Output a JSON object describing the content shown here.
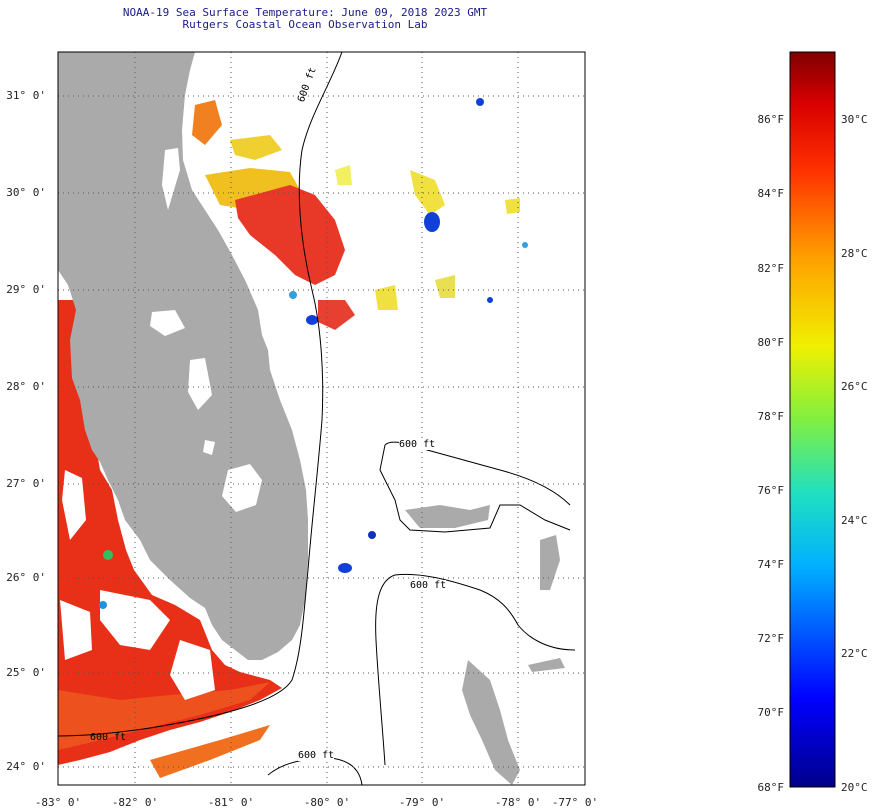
{
  "header": {
    "title_line1": "NOAA-19 Sea Surface Temperature:  June 09, 2018 2023 GMT",
    "title_line2": "Rutgers Coastal Ocean Observation Lab"
  },
  "map": {
    "lat_labels": [
      "31° 0'",
      "30° 0'",
      "29° 0'",
      "28° 0'",
      "27° 0'",
      "26° 0'",
      "25° 0'",
      "24° 0'"
    ],
    "lon_labels": [
      "-83° 0'",
      "-82° 0'",
      "-81° 0'",
      "-80° 0'",
      "-79° 0'",
      "-78° 0'",
      "-77° 0'"
    ],
    "contour_labels": [
      "600 ft",
      "600 ft",
      "600 ft",
      "600 ft",
      "600 ft"
    ],
    "colors": {
      "land": "#aaaaaa",
      "no_data": "#ffffff",
      "warm": "#e82810",
      "orange": "#f08018",
      "yellow": "#f0e020",
      "blue": "#1040d0"
    }
  },
  "colorbar": {
    "fahrenheit_labels": [
      "86°F",
      "84°F",
      "82°F",
      "80°F",
      "78°F",
      "76°F",
      "74°F",
      "72°F",
      "70°F",
      "68°F"
    ],
    "celsius_labels": [
      "30°C",
      "28°C",
      "26°C",
      "24°C",
      "22°C",
      "20°C"
    ],
    "min_c": 20,
    "max_c": 31,
    "min_f": 68,
    "max_f": 88
  }
}
